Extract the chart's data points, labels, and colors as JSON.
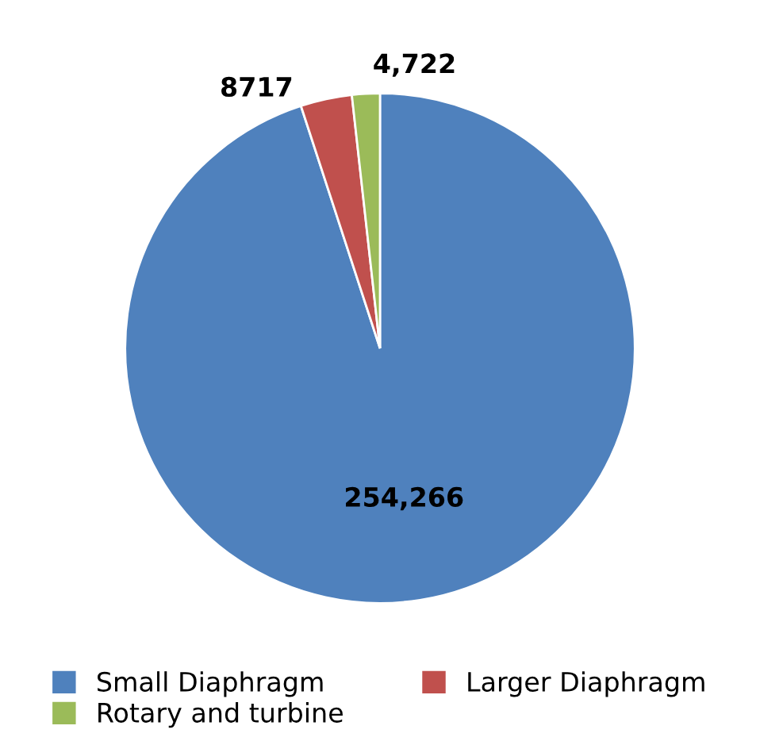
{
  "chart_data": {
    "type": "pie",
    "categories": [
      "Small Diaphragm",
      "Larger Diaphragm",
      "Rotary and turbine"
    ],
    "values": [
      254266,
      8717,
      4722
    ],
    "colors": [
      "#4f81bd",
      "#c0504d",
      "#9bbb59"
    ],
    "value_labels": [
      "254,266",
      "8717",
      "4,722"
    ],
    "legend": "bottom"
  }
}
